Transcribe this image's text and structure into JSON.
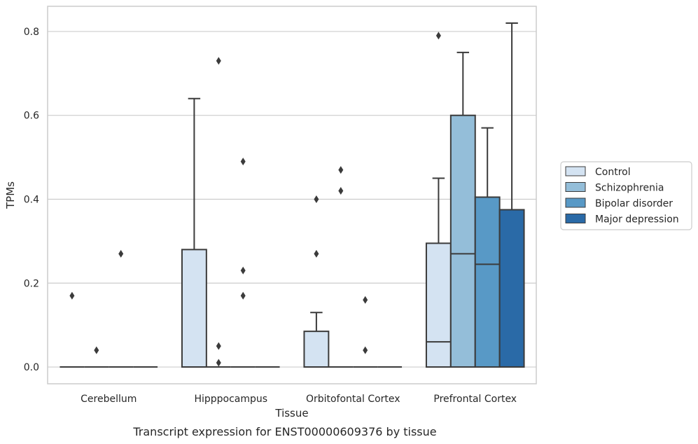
{
  "chart_data": {
    "type": "box",
    "xlabel": "Tissue",
    "ylabel": "TPMs",
    "caption": "Transcript expression for ENST00000609376 by tissue",
    "ylim": [
      -0.04,
      0.86
    ],
    "yticks": [
      "0.0",
      "0.2",
      "0.4",
      "0.6",
      "0.8"
    ],
    "grid": "horizontal",
    "legend_position": "right",
    "categories": [
      "Cerebellum",
      "Hipppocampus",
      "Orbitofontal Cortex",
      "Prefrontal Cortex"
    ],
    "series": [
      {
        "name": "Control",
        "color": "#d4e3f2",
        "boxes": [
          {
            "q1": 0,
            "median": 0,
            "q3": 0,
            "whisker_low": 0,
            "whisker_high": 0,
            "outliers": [
              0.17
            ]
          },
          {
            "q1": 0,
            "median": 0,
            "q3": 0.28,
            "whisker_low": 0,
            "whisker_high": 0.64,
            "outliers": []
          },
          {
            "q1": 0,
            "median": 0,
            "q3": 0.085,
            "whisker_low": 0,
            "whisker_high": 0.13,
            "outliers": [
              0.27,
              0.4
            ]
          },
          {
            "q1": 0,
            "median": 0.06,
            "q3": 0.295,
            "whisker_low": 0,
            "whisker_high": 0.45,
            "outliers": [
              0.79
            ]
          }
        ]
      },
      {
        "name": "Schizophrenia",
        "color": "#94bed9",
        "boxes": [
          {
            "q1": 0,
            "median": 0,
            "q3": 0,
            "whisker_low": 0,
            "whisker_high": 0,
            "outliers": [
              0.04
            ]
          },
          {
            "q1": 0,
            "median": 0,
            "q3": 0,
            "whisker_low": 0,
            "whisker_high": 0,
            "outliers": [
              0.01,
              0.05,
              0.73
            ]
          },
          {
            "q1": 0,
            "median": 0,
            "q3": 0,
            "whisker_low": 0,
            "whisker_high": 0,
            "outliers": [
              0.42,
              0.47
            ]
          },
          {
            "q1": 0,
            "median": 0.27,
            "q3": 0.6,
            "whisker_low": 0,
            "whisker_high": 0.75,
            "outliers": []
          }
        ]
      },
      {
        "name": "Bipolar disorder",
        "color": "#5899c6",
        "boxes": [
          {
            "q1": 0,
            "median": 0,
            "q3": 0,
            "whisker_low": 0,
            "whisker_high": 0,
            "outliers": [
              0.27
            ]
          },
          {
            "q1": 0,
            "median": 0,
            "q3": 0,
            "whisker_low": 0,
            "whisker_high": 0,
            "outliers": [
              0.17,
              0.23,
              0.49
            ]
          },
          {
            "q1": 0,
            "median": 0,
            "q3": 0,
            "whisker_low": 0,
            "whisker_high": 0,
            "outliers": [
              0.04,
              0.16
            ]
          },
          {
            "q1": 0,
            "median": 0.245,
            "q3": 0.405,
            "whisker_low": 0,
            "whisker_high": 0.57,
            "outliers": []
          }
        ]
      },
      {
        "name": "Major depression",
        "color": "#2a6aa7",
        "boxes": [
          {
            "q1": 0,
            "median": 0,
            "q3": 0,
            "whisker_low": 0,
            "whisker_high": 0,
            "outliers": []
          },
          {
            "q1": 0,
            "median": 0,
            "q3": 0,
            "whisker_low": 0,
            "whisker_high": 0,
            "outliers": []
          },
          {
            "q1": 0,
            "median": 0,
            "q3": 0,
            "whisker_low": 0,
            "whisker_high": 0,
            "outliers": []
          },
          {
            "q1": 0,
            "median": 0,
            "q3": 0.375,
            "whisker_low": 0,
            "whisker_high": 0.82,
            "outliers": []
          }
        ]
      }
    ]
  }
}
